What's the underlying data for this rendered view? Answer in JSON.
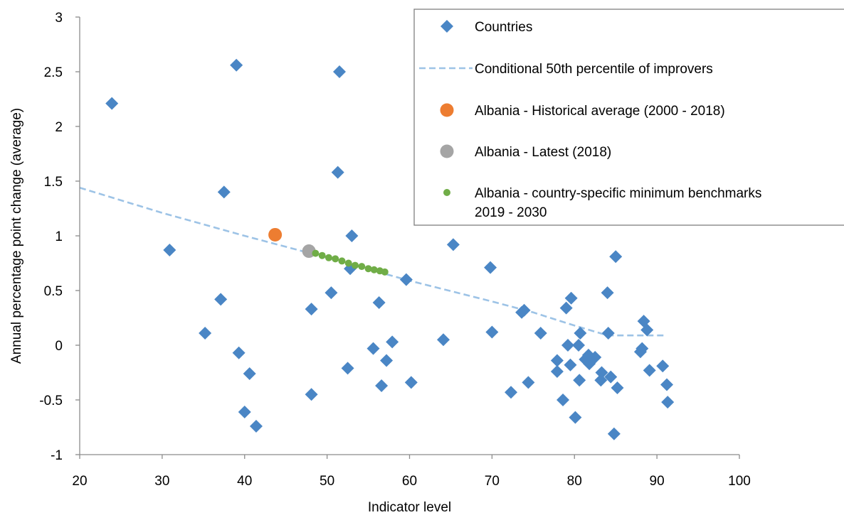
{
  "chart_data": {
    "type": "scatter",
    "title": "",
    "xlabel": "Indicator level",
    "ylabel": "Annual percentage point change (average)",
    "xlim": [
      20,
      100
    ],
    "ylim": [
      -1,
      3
    ],
    "x_ticks": [
      "20",
      "30",
      "40",
      "50",
      "60",
      "70",
      "80",
      "90",
      "100"
    ],
    "y_ticks": [
      "-1",
      "-0.5",
      "0",
      "0.5",
      "1",
      "1.5",
      "2",
      "2.5",
      "3"
    ],
    "grid": false,
    "legend_position": "top-right",
    "series": [
      {
        "name": "Countries",
        "marker": "diamond",
        "color": "#4a86c5",
        "points": [
          [
            23.9,
            2.21
          ],
          [
            30.9,
            0.87
          ],
          [
            35.2,
            0.11
          ],
          [
            37.1,
            0.42
          ],
          [
            37.5,
            1.4
          ],
          [
            39.0,
            2.56
          ],
          [
            39.3,
            -0.07
          ],
          [
            40.0,
            -0.61
          ],
          [
            40.6,
            -0.26
          ],
          [
            41.4,
            -0.74
          ],
          [
            48.1,
            0.33
          ],
          [
            48.1,
            -0.45
          ],
          [
            50.5,
            0.48
          ],
          [
            51.3,
            1.58
          ],
          [
            51.5,
            2.5
          ],
          [
            52.5,
            -0.21
          ],
          [
            52.8,
            0.7
          ],
          [
            53.0,
            1.0
          ],
          [
            55.6,
            -0.03
          ],
          [
            56.3,
            0.39
          ],
          [
            56.6,
            -0.37
          ],
          [
            57.2,
            -0.14
          ],
          [
            57.9,
            0.03
          ],
          [
            59.6,
            0.6
          ],
          [
            60.2,
            -0.34
          ],
          [
            64.1,
            0.05
          ],
          [
            65.3,
            0.92
          ],
          [
            69.8,
            0.71
          ],
          [
            70.0,
            0.12
          ],
          [
            72.3,
            -0.43
          ],
          [
            73.6,
            0.3
          ],
          [
            73.9,
            0.32
          ],
          [
            74.4,
            -0.34
          ],
          [
            75.9,
            0.11
          ],
          [
            77.9,
            -0.14
          ],
          [
            77.9,
            -0.24
          ],
          [
            78.6,
            -0.5
          ],
          [
            79.0,
            0.34
          ],
          [
            79.2,
            0.0
          ],
          [
            79.5,
            -0.18
          ],
          [
            79.6,
            0.43
          ],
          [
            80.1,
            -0.66
          ],
          [
            80.5,
            0.0
          ],
          [
            80.6,
            -0.32
          ],
          [
            80.7,
            0.11
          ],
          [
            81.3,
            -0.13
          ],
          [
            81.7,
            -0.09
          ],
          [
            81.8,
            -0.17
          ],
          [
            82.5,
            -0.11
          ],
          [
            83.2,
            -0.32
          ],
          [
            83.3,
            -0.25
          ],
          [
            84.0,
            0.48
          ],
          [
            84.1,
            0.11
          ],
          [
            84.4,
            -0.29
          ],
          [
            84.8,
            -0.81
          ],
          [
            85.0,
            0.81
          ],
          [
            85.2,
            -0.39
          ],
          [
            88.0,
            -0.06
          ],
          [
            88.2,
            -0.03
          ],
          [
            88.4,
            0.22
          ],
          [
            88.8,
            0.14
          ],
          [
            89.1,
            -0.23
          ],
          [
            90.7,
            -0.19
          ],
          [
            91.2,
            -0.36
          ],
          [
            91.3,
            -0.52
          ]
        ]
      },
      {
        "name": "Conditional 50th percentile of improvers",
        "marker": "dashed-line",
        "color": "#9dc3e6",
        "points": [
          [
            20,
            1.44
          ],
          [
            30,
            1.21
          ],
          [
            40,
            1.0
          ],
          [
            50,
            0.8
          ],
          [
            60,
            0.59
          ],
          [
            70,
            0.4
          ],
          [
            75,
            0.3
          ],
          [
            80,
            0.18
          ],
          [
            84,
            0.09
          ],
          [
            91,
            0.09
          ]
        ]
      },
      {
        "name": "Albania - Historical average (2000 - 2018)",
        "marker": "circle",
        "color": "#ed7d31",
        "points": [
          [
            43.7,
            1.01
          ]
        ]
      },
      {
        "name": "Albania - Latest (2018)",
        "marker": "circle",
        "color": "#a5a5a5",
        "points": [
          [
            47.8,
            0.86
          ]
        ]
      },
      {
        "name": "Albania - country-specific minimum benchmarks 2019 - 2030",
        "legend_lines": [
          "Albania - country-specific minimum benchmarks",
          "2019 - 2030"
        ],
        "marker": "small-circle",
        "color": "#70ad47",
        "points": [
          [
            48.6,
            0.84
          ],
          [
            49.4,
            0.82
          ],
          [
            50.2,
            0.8
          ],
          [
            51.0,
            0.79
          ],
          [
            51.8,
            0.77
          ],
          [
            52.6,
            0.75
          ],
          [
            53.4,
            0.73
          ],
          [
            54.2,
            0.72
          ],
          [
            55.0,
            0.7
          ],
          [
            55.7,
            0.69
          ],
          [
            56.4,
            0.68
          ],
          [
            57.0,
            0.67
          ]
        ]
      }
    ]
  }
}
